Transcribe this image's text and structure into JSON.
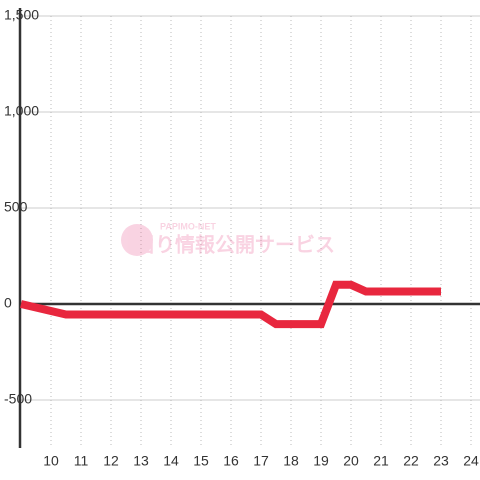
{
  "chart_data": {
    "type": "line",
    "watermark": {
      "site": "PAPIMO-NET",
      "text": "当り情報公開サービス"
    },
    "x": [
      9,
      10.5,
      17,
      17.5,
      19,
      19.5,
      20,
      20.5,
      23
    ],
    "series": [
      {
        "color": "#e8273e",
        "values": [
          0,
          -55,
          -55,
          -105,
          -105,
          100,
          100,
          65,
          65
        ]
      }
    ],
    "xlim": [
      9,
      24.3
    ],
    "xticks": [
      10,
      11,
      12,
      13,
      14,
      15,
      16,
      17,
      18,
      19,
      20,
      21,
      22,
      23,
      24
    ],
    "ylim": [
      -750,
      1500
    ],
    "yticks": [
      {
        "value": 1500,
        "label": "1,500"
      },
      {
        "value": 1000,
        "label": "1,000"
      },
      500,
      0,
      -500
    ],
    "grid": true
  }
}
